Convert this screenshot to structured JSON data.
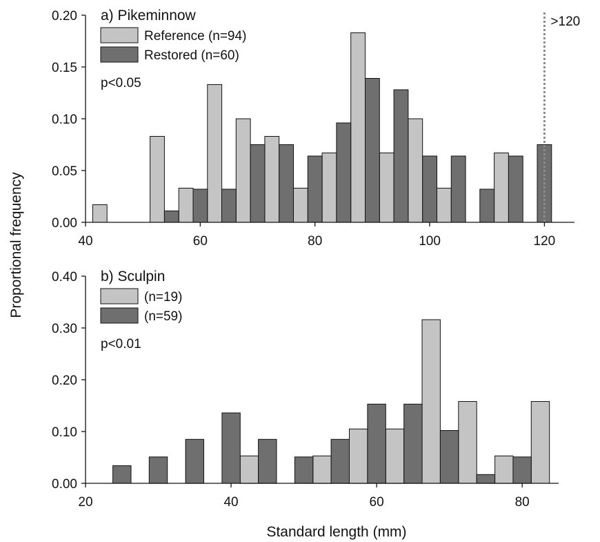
{
  "colors": {
    "reference": "#c4c4c4",
    "restored": "#6f6f6f",
    "outline": "#111111",
    "cutoff_line": "#8a8a8a"
  },
  "ylabel": "Proportional frequency",
  "xlabel": "Standard length (mm)",
  "chart_data": [
    {
      "type": "bar",
      "title": "a) Pikeminnow",
      "xlim": [
        40,
        125
      ],
      "ylim": [
        0,
        0.2
      ],
      "bin_width": 2.5,
      "xticks": [
        40,
        60,
        80,
        100,
        120
      ],
      "xtick_labels": [
        "40",
        "60",
        "80",
        "100",
        "120"
      ],
      "yticks": [
        0,
        0.05,
        0.1,
        0.15,
        0.2
      ],
      "ytick_labels": [
        "0.00",
        "0.05",
        "0.10",
        "0.15",
        "0.20"
      ],
      "annotation": "p<0.05",
      "cutoff": {
        "x": 120,
        "label": ">120"
      },
      "series": [
        {
          "name": "Reference (n=94)",
          "color_key": "reference",
          "points": [
            [
              42.5,
              0.017
            ],
            [
              52.5,
              0.083
            ],
            [
              57.5,
              0.033
            ],
            [
              62.5,
              0.133
            ],
            [
              67.5,
              0.1
            ],
            [
              72.5,
              0.083
            ],
            [
              77.5,
              0.033
            ],
            [
              82.5,
              0.067
            ],
            [
              87.5,
              0.183
            ],
            [
              92.5,
              0.067
            ],
            [
              97.5,
              0.1
            ],
            [
              102.5,
              0.033
            ],
            [
              112.5,
              0.067
            ]
          ]
        },
        {
          "name": "Restored (n=60)",
          "color_key": "restored",
          "points": [
            [
              55,
              0.011
            ],
            [
              60,
              0.032
            ],
            [
              65,
              0.032
            ],
            [
              70,
              0.075
            ],
            [
              75,
              0.075
            ],
            [
              80,
              0.064
            ],
            [
              85,
              0.096
            ],
            [
              90,
              0.139
            ],
            [
              95,
              0.128
            ],
            [
              100,
              0.064
            ],
            [
              105,
              0.064
            ],
            [
              110,
              0.032
            ],
            [
              115,
              0.064
            ],
            [
              120,
              0.075
            ]
          ]
        }
      ]
    },
    {
      "type": "bar",
      "title": "b) Sculpin",
      "xlim": [
        20,
        87
      ],
      "ylim": [
        0,
        0.4
      ],
      "bin_width": 2.5,
      "xticks": [
        20,
        40,
        60,
        80
      ],
      "xtick_labels": [
        "20",
        "40",
        "60",
        "80"
      ],
      "yticks": [
        0,
        0.1,
        0.2,
        0.3,
        0.4
      ],
      "ytick_labels": [
        "0.00",
        "0.10",
        "0.20",
        "0.30",
        "0.40"
      ],
      "annotation": "p<0.01",
      "series": [
        {
          "name": "(n=19)",
          "color_key": "reference",
          "points": [
            [
              42.5,
              0.053
            ],
            [
              52.5,
              0.053
            ],
            [
              57.5,
              0.105
            ],
            [
              62.5,
              0.105
            ],
            [
              67.5,
              0.316
            ],
            [
              72.5,
              0.158
            ],
            [
              77.5,
              0.053
            ],
            [
              82.5,
              0.158
            ]
          ]
        },
        {
          "name": "(n=59)",
          "color_key": "restored",
          "points": [
            [
              25,
              0.034
            ],
            [
              30,
              0.051
            ],
            [
              35,
              0.085
            ],
            [
              40,
              0.136
            ],
            [
              45,
              0.085
            ],
            [
              50,
              0.051
            ],
            [
              55,
              0.085
            ],
            [
              60,
              0.153
            ],
            [
              65,
              0.153
            ],
            [
              70,
              0.102
            ],
            [
              75,
              0.017
            ],
            [
              80,
              0.051
            ]
          ]
        }
      ]
    }
  ]
}
